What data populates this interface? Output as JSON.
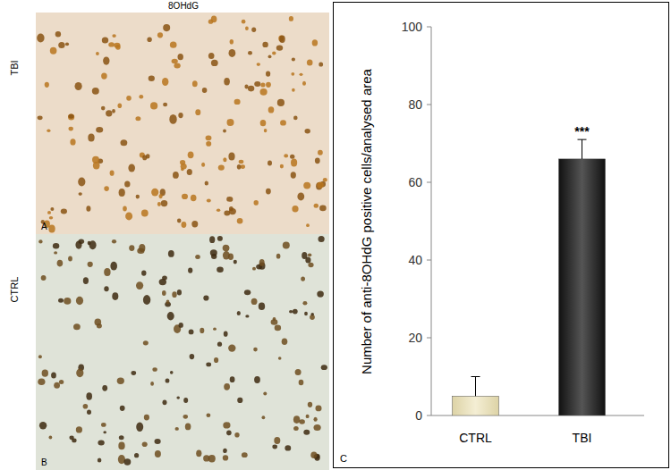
{
  "panels": [
    {
      "label": "TBI",
      "letter": "A"
    },
    {
      "label": "CTRL",
      "letter": "B"
    }
  ],
  "panel_letter": "C",
  "chart_data": {
    "type": "bar",
    "title": "8OHdG",
    "y_label": "Number of anti-8OHdG positive cells/analysed area",
    "categories": [
      "CTRL",
      "TBI"
    ],
    "values": [
      5,
      66
    ],
    "errors": [
      5,
      5
    ],
    "colors": [
      "#ddd3a6",
      "#111111"
    ],
    "ylim": [
      0,
      100
    ],
    "yticks": [
      0,
      20,
      40,
      60,
      80,
      100
    ],
    "annotations": [
      {
        "text": "***",
        "category": "TBI"
      }
    ]
  }
}
